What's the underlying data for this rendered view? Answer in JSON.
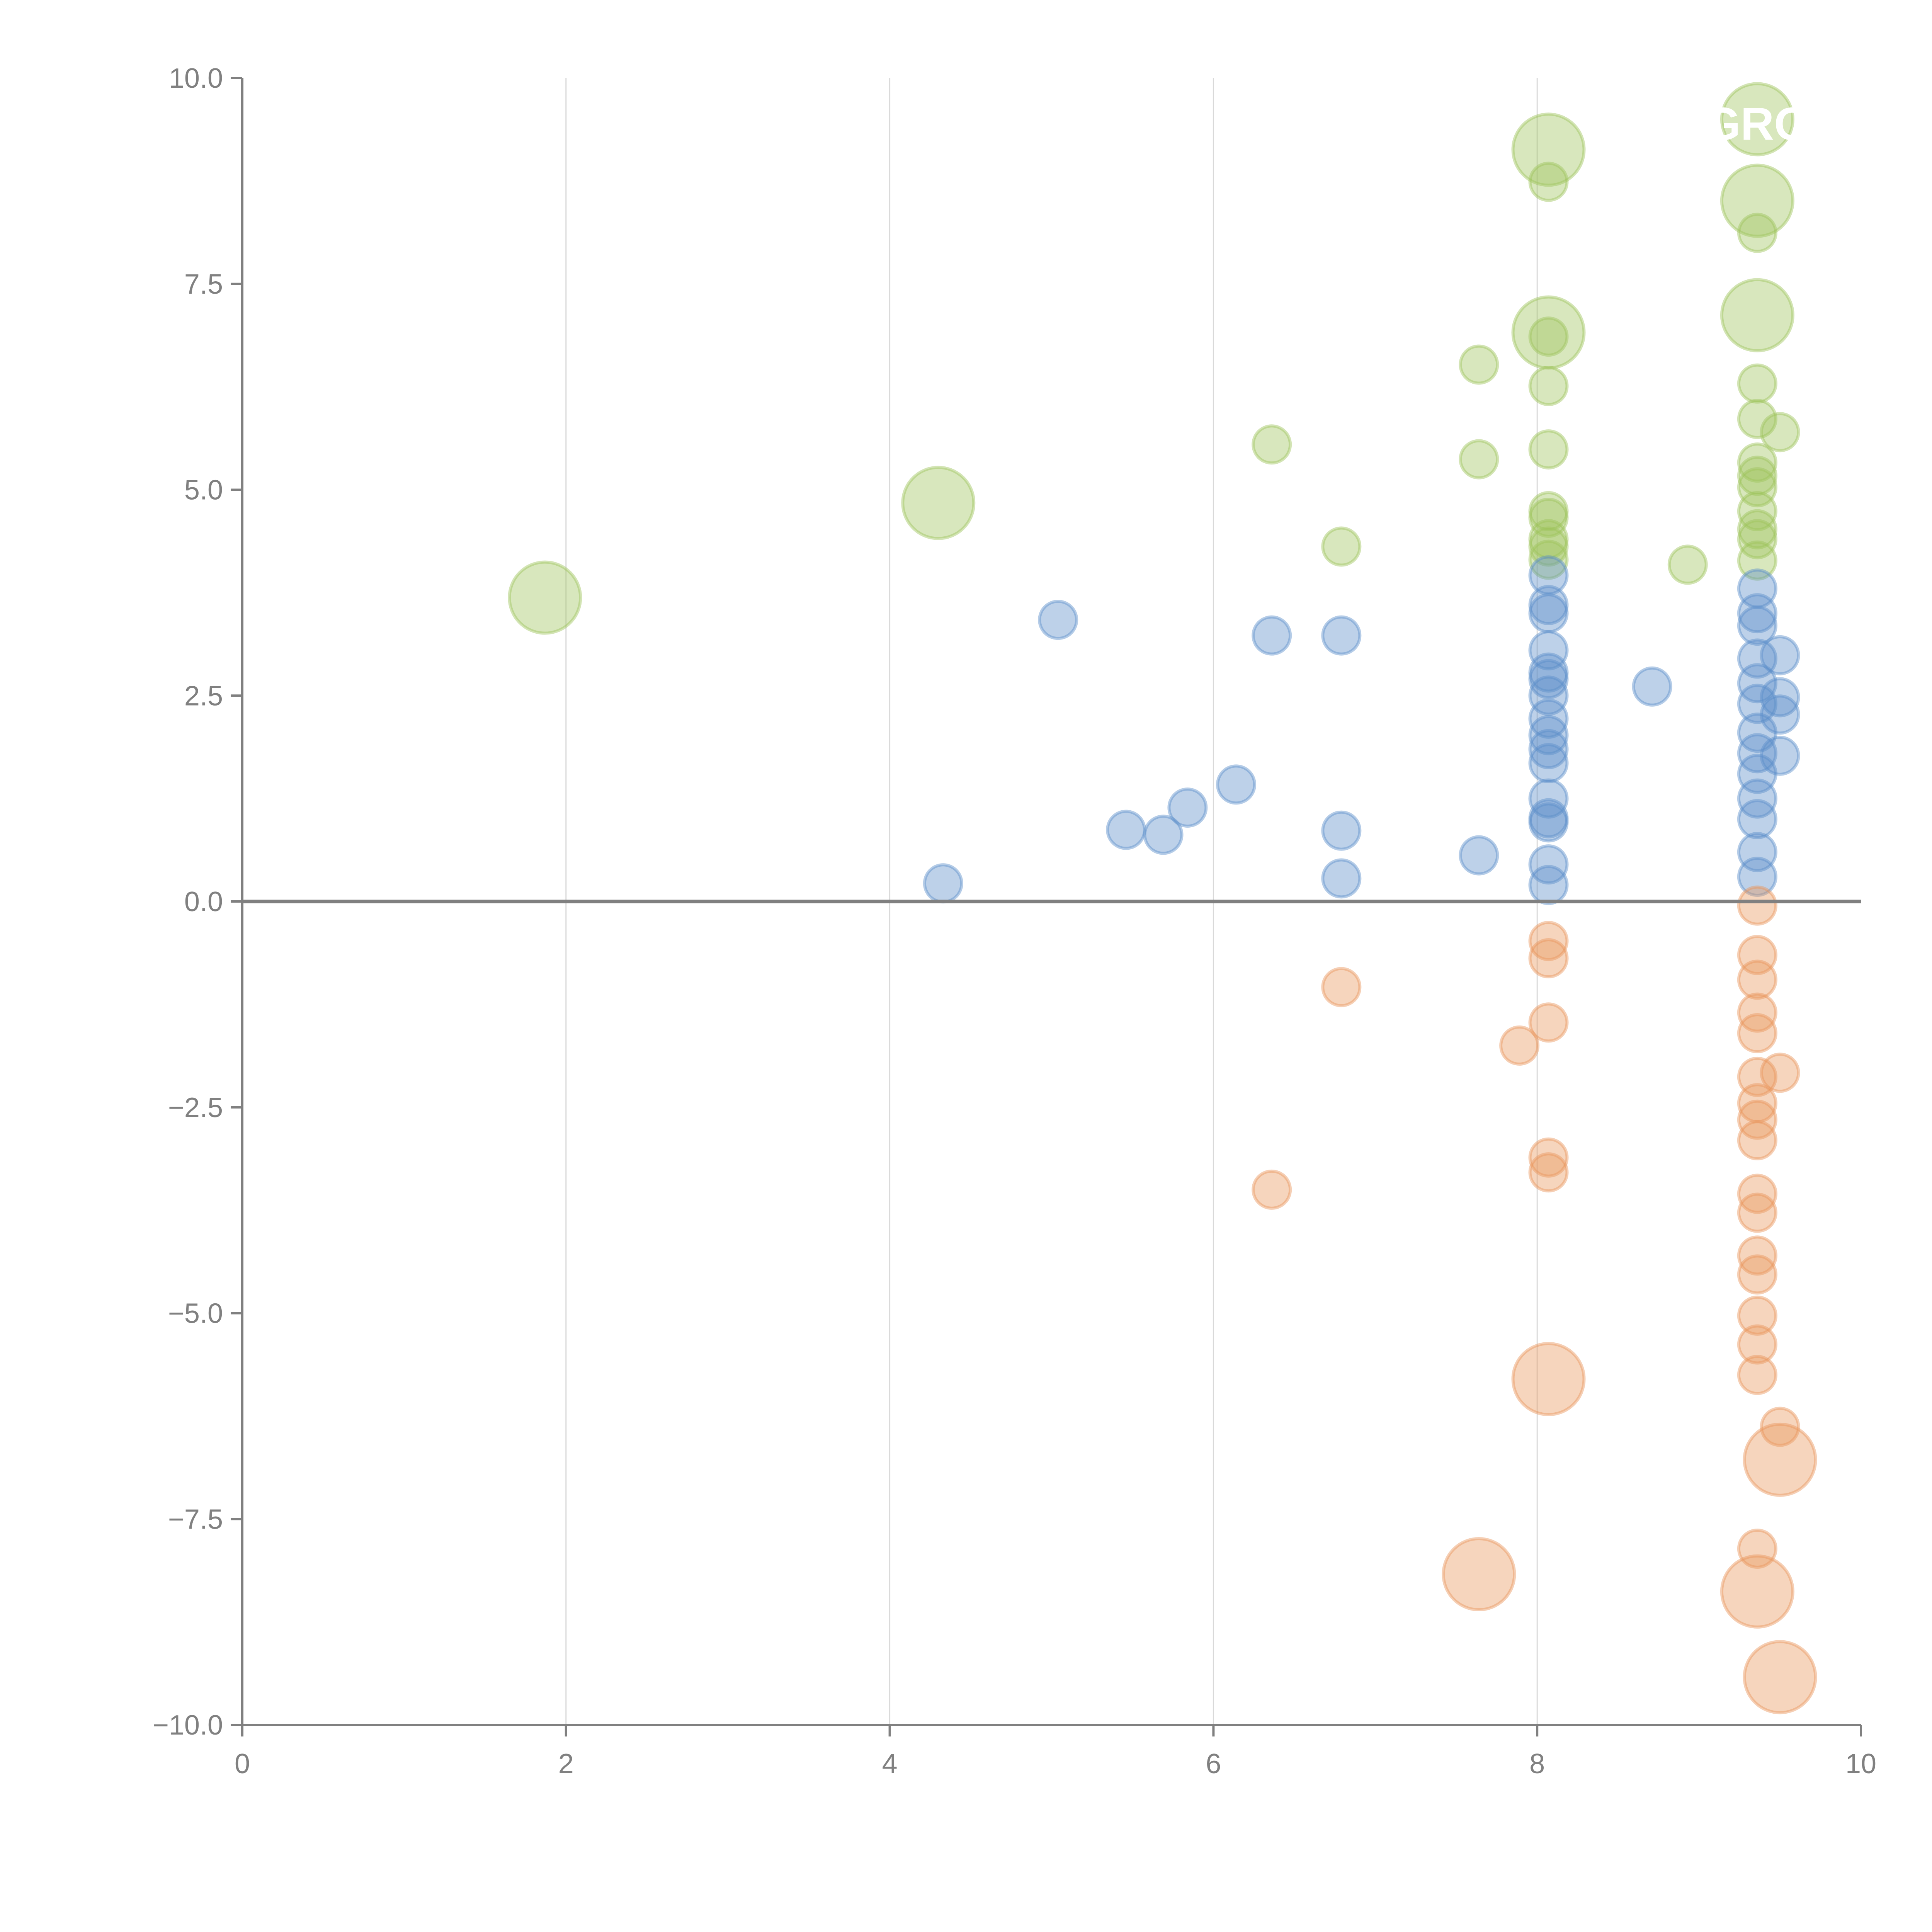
{
  "chart_data": {
    "type": "scatter",
    "subtype": "bubble",
    "title": "",
    "xlabel": "",
    "ylabel": "",
    "xlim": [
      0,
      10
    ],
    "ylim": [
      -10,
      10
    ],
    "x_ticks": [
      "0",
      "2",
      "4",
      "6",
      "8",
      "10"
    ],
    "y_ticks": [
      "10.0",
      "7.5",
      "5.0",
      "2.5",
      "0.0",
      "−2.5",
      "−5.0",
      "−7.5",
      "−10.0"
    ],
    "x_tick_values": [
      0,
      2,
      4,
      6,
      8,
      10
    ],
    "y_tick_values": [
      10,
      7.5,
      5,
      2.5,
      0,
      -2.5,
      -5,
      -7.5,
      -10
    ],
    "grid": "vertical",
    "zero_line": true,
    "annotation_text": "GRO",
    "series": [
      {
        "name": "green",
        "color": "#9dc35b",
        "points": [
          {
            "x": 1.87,
            "y": 3.69,
            "size": 4
          },
          {
            "x": 4.3,
            "y": 4.84,
            "size": 4
          },
          {
            "x": 6.36,
            "y": 5.55,
            "size": 1
          },
          {
            "x": 6.79,
            "y": 4.31,
            "size": 1
          },
          {
            "x": 7.64,
            "y": 6.52,
            "size": 1
          },
          {
            "x": 7.64,
            "y": 5.37,
            "size": 1
          },
          {
            "x": 8.07,
            "y": 9.13,
            "size": 4
          },
          {
            "x": 8.07,
            "y": 8.74,
            "size": 1
          },
          {
            "x": 8.07,
            "y": 6.91,
            "size": 4
          },
          {
            "x": 8.07,
            "y": 6.86,
            "size": 1
          },
          {
            "x": 8.07,
            "y": 6.26,
            "size": 1
          },
          {
            "x": 8.07,
            "y": 5.49,
            "size": 1
          },
          {
            "x": 8.07,
            "y": 4.74,
            "size": 1
          },
          {
            "x": 8.07,
            "y": 4.66,
            "size": 1
          },
          {
            "x": 8.07,
            "y": 4.4,
            "size": 1
          },
          {
            "x": 8.07,
            "y": 4.31,
            "size": 1
          },
          {
            "x": 8.07,
            "y": 4.15,
            "size": 1
          },
          {
            "x": 8.93,
            "y": 4.09,
            "size": 1
          },
          {
            "x": 9.36,
            "y": 9.5,
            "size": 4
          },
          {
            "x": 9.36,
            "y": 8.51,
            "size": 4
          },
          {
            "x": 9.36,
            "y": 8.12,
            "size": 1
          },
          {
            "x": 9.36,
            "y": 7.12,
            "size": 4
          },
          {
            "x": 9.36,
            "y": 6.29,
            "size": 1
          },
          {
            "x": 9.36,
            "y": 5.86,
            "size": 1
          },
          {
            "x": 9.5,
            "y": 5.7,
            "size": 1
          },
          {
            "x": 9.36,
            "y": 5.33,
            "size": 1
          },
          {
            "x": 9.36,
            "y": 5.17,
            "size": 1
          },
          {
            "x": 9.36,
            "y": 5.03,
            "size": 1
          },
          {
            "x": 9.36,
            "y": 4.74,
            "size": 1
          },
          {
            "x": 9.36,
            "y": 4.52,
            "size": 1
          },
          {
            "x": 9.36,
            "y": 4.4,
            "size": 1
          },
          {
            "x": 9.36,
            "y": 4.14,
            "size": 1
          }
        ]
      },
      {
        "name": "blue",
        "color": "#5b8dc9",
        "points": [
          {
            "x": 4.33,
            "y": 0.22,
            "size": 1
          },
          {
            "x": 5.04,
            "y": 3.42,
            "size": 1
          },
          {
            "x": 5.46,
            "y": 0.87,
            "size": 1
          },
          {
            "x": 5.69,
            "y": 0.81,
            "size": 1
          },
          {
            "x": 5.84,
            "y": 1.14,
            "size": 1
          },
          {
            "x": 6.14,
            "y": 1.42,
            "size": 1
          },
          {
            "x": 6.36,
            "y": 3.23,
            "size": 1
          },
          {
            "x": 6.79,
            "y": 3.23,
            "size": 1
          },
          {
            "x": 6.79,
            "y": 0.86,
            "size": 1
          },
          {
            "x": 6.79,
            "y": 0.28,
            "size": 1
          },
          {
            "x": 7.64,
            "y": 0.56,
            "size": 1
          },
          {
            "x": 8.07,
            "y": 3.96,
            "size": 1
          },
          {
            "x": 8.07,
            "y": 3.6,
            "size": 1
          },
          {
            "x": 8.07,
            "y": 3.5,
            "size": 1
          },
          {
            "x": 8.07,
            "y": 3.05,
            "size": 1
          },
          {
            "x": 8.07,
            "y": 2.78,
            "size": 1
          },
          {
            "x": 8.07,
            "y": 2.7,
            "size": 1
          },
          {
            "x": 8.07,
            "y": 2.5,
            "size": 1
          },
          {
            "x": 8.07,
            "y": 2.22,
            "size": 1
          },
          {
            "x": 8.07,
            "y": 2.02,
            "size": 1
          },
          {
            "x": 8.07,
            "y": 1.85,
            "size": 1
          },
          {
            "x": 8.07,
            "y": 1.68,
            "size": 1
          },
          {
            "x": 8.07,
            "y": 1.25,
            "size": 1
          },
          {
            "x": 8.07,
            "y": 1.01,
            "size": 1
          },
          {
            "x": 8.07,
            "y": 0.96,
            "size": 1
          },
          {
            "x": 8.07,
            "y": 0.45,
            "size": 1
          },
          {
            "x": 8.07,
            "y": 0.2,
            "size": 1
          },
          {
            "x": 8.71,
            "y": 2.61,
            "size": 1
          },
          {
            "x": 9.36,
            "y": 3.8,
            "size": 1
          },
          {
            "x": 9.36,
            "y": 3.5,
            "size": 1
          },
          {
            "x": 9.36,
            "y": 3.35,
            "size": 1
          },
          {
            "x": 9.36,
            "y": 2.95,
            "size": 1
          },
          {
            "x": 9.36,
            "y": 2.65,
            "size": 1
          },
          {
            "x": 9.36,
            "y": 2.4,
            "size": 1
          },
          {
            "x": 9.36,
            "y": 2.05,
            "size": 1
          },
          {
            "x": 9.36,
            "y": 1.8,
            "size": 1
          },
          {
            "x": 9.36,
            "y": 1.55,
            "size": 1
          },
          {
            "x": 9.36,
            "y": 1.25,
            "size": 1
          },
          {
            "x": 9.36,
            "y": 1.0,
            "size": 1
          },
          {
            "x": 9.36,
            "y": 0.6,
            "size": 1
          },
          {
            "x": 9.36,
            "y": 0.3,
            "size": 1
          },
          {
            "x": 9.5,
            "y": 2.99,
            "size": 1
          },
          {
            "x": 9.5,
            "y": 2.48,
            "size": 1
          },
          {
            "x": 9.5,
            "y": 2.27,
            "size": 1
          },
          {
            "x": 9.5,
            "y": 1.77,
            "size": 1
          }
        ]
      },
      {
        "name": "orange",
        "color": "#e8955a",
        "points": [
          {
            "x": 6.36,
            "y": -3.5,
            "size": 1
          },
          {
            "x": 6.79,
            "y": -1.04,
            "size": 1
          },
          {
            "x": 7.64,
            "y": -8.17,
            "size": 4
          },
          {
            "x": 7.89,
            "y": -1.75,
            "size": 1
          },
          {
            "x": 8.07,
            "y": -0.48,
            "size": 1
          },
          {
            "x": 8.07,
            "y": -0.69,
            "size": 1
          },
          {
            "x": 8.07,
            "y": -1.47,
            "size": 1
          },
          {
            "x": 8.07,
            "y": -3.11,
            "size": 1
          },
          {
            "x": 8.07,
            "y": -3.29,
            "size": 1
          },
          {
            "x": 8.07,
            "y": -5.8,
            "size": 4
          },
          {
            "x": 9.36,
            "y": -0.05,
            "size": 1
          },
          {
            "x": 9.36,
            "y": -0.65,
            "size": 1
          },
          {
            "x": 9.36,
            "y": -0.95,
            "size": 1
          },
          {
            "x": 9.36,
            "y": -1.35,
            "size": 1
          },
          {
            "x": 9.36,
            "y": -1.6,
            "size": 1
          },
          {
            "x": 9.36,
            "y": -2.13,
            "size": 1
          },
          {
            "x": 9.36,
            "y": -2.45,
            "size": 1
          },
          {
            "x": 9.36,
            "y": -2.65,
            "size": 1
          },
          {
            "x": 9.36,
            "y": -2.9,
            "size": 1
          },
          {
            "x": 9.36,
            "y": -3.55,
            "size": 1
          },
          {
            "x": 9.36,
            "y": -3.78,
            "size": 1
          },
          {
            "x": 9.36,
            "y": -4.3,
            "size": 1
          },
          {
            "x": 9.36,
            "y": -4.53,
            "size": 1
          },
          {
            "x": 9.36,
            "y": -5.03,
            "size": 1
          },
          {
            "x": 9.36,
            "y": -5.38,
            "size": 1
          },
          {
            "x": 9.36,
            "y": -5.75,
            "size": 1
          },
          {
            "x": 9.36,
            "y": -7.86,
            "size": 1
          },
          {
            "x": 9.36,
            "y": -8.38,
            "size": 4
          },
          {
            "x": 9.5,
            "y": -2.08,
            "size": 1
          },
          {
            "x": 9.5,
            "y": -6.38,
            "size": 1
          },
          {
            "x": 9.5,
            "y": -6.78,
            "size": 4
          },
          {
            "x": 9.5,
            "y": -9.42,
            "size": 4
          }
        ]
      }
    ]
  }
}
